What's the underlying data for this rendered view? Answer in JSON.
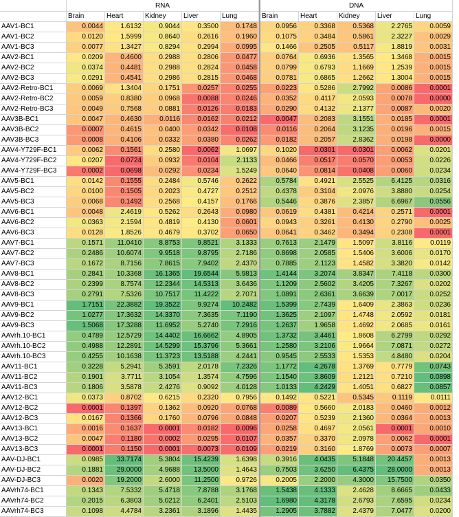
{
  "chart_data": {
    "type": "heatmap",
    "groups": [
      "RNA",
      "DNA"
    ],
    "tissues": [
      "Brain",
      "Heart",
      "Kidney",
      "Liver",
      "Lung"
    ],
    "rows": [
      {
        "label": "AAV1-BC1",
        "rna": [
          "0.0044",
          "1.6132",
          "0.9044",
          "0.3500",
          "0.1748"
        ],
        "dna": [
          "0.0956",
          "0.3368",
          "0.5368",
          "2.2765",
          "0.0059"
        ]
      },
      {
        "label": "AAV1-BC2",
        "rna": [
          "0.0120",
          "1.5999",
          "0.8640",
          "0.2616",
          "0.1960"
        ],
        "dna": [
          "0.1075",
          "0.3484",
          "0.5861",
          "2.3227",
          "0.0029"
        ]
      },
      {
        "label": "AAV1-BC3",
        "rna": [
          "0.0077",
          "1.3427",
          "0.8294",
          "0.2994",
          "0.0995"
        ],
        "dna": [
          "0.1466",
          "0.2505",
          "0.5117",
          "1.8819",
          "0.0031"
        ]
      },
      {
        "label": "AAV2-BC1",
        "rna": [
          "0.0209",
          "0.4600",
          "0.2988",
          "0.2806",
          "0.0477"
        ],
        "dna": [
          "0.0764",
          "0.6936",
          "1.3565",
          "1.3468",
          "0.0015"
        ]
      },
      {
        "label": "AAV2-BC2",
        "rna": [
          "0.0374",
          "0.4481",
          "0.2988",
          "0.2824",
          "0.0458"
        ],
        "dna": [
          "0.0799",
          "0.6793",
          "1.1669",
          "1.2539",
          "0.0015"
        ]
      },
      {
        "label": "AAV2-BC3",
        "rna": [
          "0.0291",
          "0.4541",
          "0.2986",
          "0.2815",
          "0.0468"
        ],
        "dna": [
          "0.0781",
          "0.6865",
          "1.2662",
          "1.3004",
          "0.0015"
        ]
      },
      {
        "label": "AAV2-Retro-BC1",
        "rna": [
          "0.0069",
          "1.3404",
          "0.1751",
          "0.0257",
          "0.0255"
        ],
        "dna": [
          "0.0223",
          "0.5286",
          "2.7992",
          "0.0086",
          "0.0001"
        ]
      },
      {
        "label": "AAV2-Retro-BC2",
        "rna": [
          "0.0059",
          "0.8380",
          "0.0968",
          "0.0088",
          "0.0246"
        ],
        "dna": [
          "0.0352",
          "0.4117",
          "2.0593",
          "0.0078",
          "0.0000"
        ]
      },
      {
        "label": "AAV2-Retro-BC3",
        "rna": [
          "0.0049",
          "0.7568",
          "0.0881",
          "0.0126",
          "0.0183"
        ],
        "dna": [
          "0.0290",
          "0.4132",
          "2.1377",
          "0.0087",
          "0.0020"
        ]
      },
      {
        "label": "AAV3B-BC1",
        "rna": [
          "0.0047",
          "0.4630",
          "0.0116",
          "0.0162",
          "0.0212"
        ],
        "dna": [
          "0.0047",
          "0.2083",
          "3.1551",
          "0.0185",
          "0.0001"
        ]
      },
      {
        "label": "AAV3B-BC2",
        "rna": [
          "0.0007",
          "0.4615",
          "0.0400",
          "0.0342",
          "0.0108"
        ],
        "dna": [
          "0.0116",
          "0.2064",
          "3.1235",
          "0.0196",
          "0.0015"
        ]
      },
      {
        "label": "AAV3B-BC3",
        "rna": [
          "0.0008",
          "0.4106",
          "0.0332",
          "0.0380",
          "0.0262"
        ],
        "dna": [
          "0.0182",
          "0.2057",
          "2.8362",
          "0.0198",
          "0.0000"
        ]
      },
      {
        "label": "AAV4-Y729F-BC1",
        "rna": [
          "0.0062",
          "0.1561",
          "0.2580",
          "0.0062",
          "1.0697"
        ],
        "dna": [
          "0.1020",
          "0.0301",
          "0.0301",
          "0.0062",
          "0.0201"
        ]
      },
      {
        "label": "AAV4-Y729F-BC2",
        "rna": [
          "0.0207",
          "0.0724",
          "0.0932",
          "0.0104",
          "2.1133"
        ],
        "dna": [
          "0.0466",
          "0.0517",
          "0.0570",
          "0.0053",
          "0.0226"
        ]
      },
      {
        "label": "AAV4-Y729F-BC3",
        "rna": [
          "0.0002",
          "0.0698",
          "0.0292",
          "0.0234",
          "1.5249"
        ],
        "dna": [
          "0.0640",
          "0.0814",
          "0.0408",
          "0.0060",
          "0.0234"
        ]
      },
      {
        "label": "AAV5-BC1",
        "rna": [
          "0.0142",
          "0.1555",
          "0.2484",
          "0.5746",
          "0.2622"
        ],
        "dna": [
          "0.5784",
          "0.4921",
          "2.5525",
          "6.4125",
          "0.0316"
        ]
      },
      {
        "label": "AAV5-BC2",
        "rna": [
          "0.0100",
          "0.1505",
          "0.2023",
          "0.4727",
          "0.2512"
        ],
        "dna": [
          "0.4378",
          "0.3104",
          "2.0976",
          "3.8880",
          "0.0254"
        ]
      },
      {
        "label": "AAV5-BC3",
        "rna": [
          "0.0068",
          "0.1492",
          "0.2568",
          "0.4157",
          "0.1766"
        ],
        "dna": [
          "0.5446",
          "0.3876",
          "2.3857",
          "6.6967",
          "0.0556"
        ]
      },
      {
        "label": "AAV6-BC1",
        "rna": [
          "0.0048",
          "2.4619",
          "0.5262",
          "0.2643",
          "0.0980"
        ],
        "dna": [
          "0.0619",
          "0.4381",
          "0.4214",
          "0.2571",
          "0.0001"
        ]
      },
      {
        "label": "AAV6-BC2",
        "rna": [
          "0.0363",
          "2.1594",
          "0.4819",
          "0.4130",
          "0.0601"
        ],
        "dna": [
          "0.0943",
          "0.3261",
          "0.4130",
          "0.2790",
          "0.0025"
        ]
      },
      {
        "label": "AAV6-BC3",
        "rna": [
          "0.0128",
          "1.8526",
          "0.4679",
          "0.3702",
          "0.0650"
        ],
        "dna": [
          "0.0641",
          "0.3462",
          "0.3494",
          "0.2308",
          "0.0001"
        ]
      },
      {
        "label": "AAV7-BC1",
        "rna": [
          "0.1571",
          "11.0410",
          "8.8753",
          "9.8521",
          "3.1333"
        ],
        "dna": [
          "0.7613",
          "2.1479",
          "1.5097",
          "3.8116",
          "0.0119"
        ]
      },
      {
        "label": "AAV7-BC2",
        "rna": [
          "0.2486",
          "10.6074",
          "9.9518",
          "9.8795",
          "2.7186"
        ],
        "dna": [
          "0.8698",
          "2.0585",
          "1.5406",
          "3.6006",
          "0.0170"
        ]
      },
      {
        "label": "AAV7-BC3",
        "rna": [
          "0.1672",
          "8.7156",
          "7.8615",
          "7.9402",
          "2.4370"
        ],
        "dna": [
          "0.7885",
          "2.1123",
          "1.4582",
          "3.3820",
          "0.0142"
        ]
      },
      {
        "label": "AAV8-BC1",
        "rna": [
          "0.2841",
          "10.3368",
          "16.1365",
          "19.6544",
          "5.9813"
        ],
        "dna": [
          "1.4144",
          "3.2074",
          "3.8347",
          "7.4118",
          "0.0300"
        ]
      },
      {
        "label": "AAV8-BC2",
        "rna": [
          "0.2399",
          "8.7574",
          "12.2344",
          "14.5313",
          "3.6436"
        ],
        "dna": [
          "1.1209",
          "2.5602",
          "3.4205",
          "7.3267",
          "0.0202"
        ]
      },
      {
        "label": "AAV8-BC3",
        "rna": [
          "0.2791",
          "7.5326",
          "10.7517",
          "11.4222",
          "2.7071"
        ],
        "dna": [
          "1.0891",
          "2.6361",
          "3.6639",
          "7.0017",
          "0.0252"
        ]
      },
      {
        "label": "AAV9-BC1",
        "rna": [
          "1.7151",
          "22.3882",
          "19.3522",
          "9.9274",
          "10.2482"
        ],
        "dna": [
          "1.5399",
          "2.7439",
          "1.6409",
          "2.3863",
          "0.0236"
        ]
      },
      {
        "label": "AAV9-BC2",
        "rna": [
          "1.0277",
          "17.3632",
          "14.3370",
          "7.3635",
          "7.1190"
        ],
        "dna": [
          "1.3625",
          "2.1097",
          "1.4748",
          "2.0592",
          "0.0181"
        ]
      },
      {
        "label": "AAV9-BC3",
        "rna": [
          "1.5068",
          "17.3288",
          "11.6952",
          "5.2740",
          "7.2916"
        ],
        "dna": [
          "1.2637",
          "1.9658",
          "1.4692",
          "2.0685",
          "0.0161"
        ]
      },
      {
        "label": "AAVrh.10-BC1",
        "rna": [
          "0.4789",
          "12.5729",
          "14.4402",
          "16.6662",
          "4.8905"
        ],
        "dna": [
          "1.3732",
          "3.4461",
          "1.8608",
          "6.2799",
          "0.0292"
        ]
      },
      {
        "label": "AAVrh.10-BC2",
        "rna": [
          "0.4988",
          "12.2891",
          "14.5299",
          "15.3796",
          "5.3661"
        ],
        "dna": [
          "1.2580",
          "3.2106",
          "1.9664",
          "7.0871",
          "0.0272"
        ]
      },
      {
        "label": "AAVrh.10-BC3",
        "rna": [
          "0.4255",
          "10.1638",
          "11.3723",
          "13.5188",
          "4.2441"
        ],
        "dna": [
          "0.9545",
          "2.5533",
          "1.5353",
          "4.8480",
          "0.0204"
        ]
      },
      {
        "label": "AAV11-BC1",
        "rna": [
          "0.3228",
          "5.2941",
          "5.3591",
          "2.0178",
          "7.2326"
        ],
        "dna": [
          "1.1772",
          "4.2678",
          "1.3769",
          "0.7779",
          "0.0743"
        ]
      },
      {
        "label": "AAV11-BC2",
        "rna": [
          "0.1901",
          "3.7711",
          "3.1054",
          "1.3574",
          "4.7596"
        ],
        "dna": [
          "1.1540",
          "3.8609",
          "1.2121",
          "0.7210",
          "0.0898"
        ]
      },
      {
        "label": "AAV11-BC3",
        "rna": [
          "0.1806",
          "3.5878",
          "2.4276",
          "0.9092",
          "4.0128"
        ],
        "dna": [
          "1.0133",
          "4.2429",
          "1.4051",
          "0.6827",
          "0.0857"
        ]
      },
      {
        "label": "AAV12-BC1",
        "rna": [
          "0.0373",
          "0.8702",
          "0.6215",
          "0.2320",
          "0.7956"
        ],
        "dna": [
          "0.1492",
          "0.5221",
          "0.5345",
          "0.1119",
          "0.0111"
        ]
      },
      {
        "label": "AAV12-BC2",
        "rna": [
          "0.0001",
          "0.1397",
          "0.1362",
          "0.0920",
          "0.0768"
        ],
        "dna": [
          "0.0089",
          "0.5660",
          "2.0183",
          "0.0460",
          "0.0012"
        ]
      },
      {
        "label": "AAV12-BC3",
        "rna": [
          "0.0167",
          "0.1366",
          "0.1760",
          "0.0796",
          "0.0848"
        ],
        "dna": [
          "0.0207",
          "0.5239",
          "2.1360",
          "0.0364",
          "0.0013"
        ]
      },
      {
        "label": "AAV13-BC1",
        "rna": [
          "0.0016",
          "0.1637",
          "0.0001",
          "0.0182",
          "0.0096"
        ],
        "dna": [
          "0.0258",
          "0.4697",
          "2.0561",
          "0.0001",
          "0.0010"
        ]
      },
      {
        "label": "AAV13-BC2",
        "rna": [
          "0.0047",
          "0.1180",
          "0.0002",
          "0.0295",
          "0.0107"
        ],
        "dna": [
          "0.0357",
          "0.3370",
          "2.0978",
          "0.0062",
          "0.0001"
        ]
      },
      {
        "label": "AAV13-BC3",
        "rna": [
          "0.0001",
          "0.1150",
          "0.0001",
          "0.0073",
          "0.0109"
        ],
        "dna": [
          "0.0219",
          "0.3160",
          "1.8769",
          "0.0073",
          "0.0007"
        ]
      },
      {
        "label": "AAV-DJ-BC1",
        "rna": [
          "0.0985",
          "33.7174",
          "5.3804",
          "15.4239",
          "1.6398"
        ],
        "dna": [
          "0.3916",
          "4.0435",
          "5.1848",
          "20.4457",
          "0.0013"
        ]
      },
      {
        "label": "AAV-DJ-BC2",
        "rna": [
          "0.1881",
          "29.0000",
          "4.9688",
          "13.5000",
          "1.4643"
        ],
        "dna": [
          "0.7503",
          "3.6250",
          "6.4375",
          "28.0000",
          "0.0013"
        ]
      },
      {
        "label": "AAV-DJ-BC3",
        "rna": [
          "0.0020",
          "19.2000",
          "2.6000",
          "11.2500",
          "0.9726"
        ],
        "dna": [
          "0.2005",
          "2.2000",
          "4.3000",
          "15.7500",
          "0.0350"
        ]
      },
      {
        "label": "AAVrh74-BC1",
        "rna": [
          "0.1343",
          "7.5332",
          "5.4718",
          "7.8788",
          "3.1768"
        ],
        "dna": [
          "1.5438",
          "4.1333",
          "2.4628",
          "8.6665",
          "0.0433"
        ]
      },
      {
        "label": "AAVrh74-BC2",
        "rna": [
          "0.2015",
          "6.3803",
          "5.0212",
          "6.2401",
          "2.5103"
        ],
        "dna": [
          "1.6980",
          "4.3178",
          "2.6793",
          "7.6595",
          "0.0234"
        ]
      },
      {
        "label": "AAVrh74-BC3",
        "rna": [
          "0.1098",
          "4.4784",
          "3.2361",
          "3.1896",
          "1.4435"
        ],
        "dna": [
          "1.2905",
          "3.7882",
          "2.4379",
          "7.0477",
          "0.0200"
        ]
      }
    ],
    "color_scale": {
      "low": "#f8696b",
      "mid": "#ffeb84",
      "high": "#63be7b",
      "scale": "log",
      "per_column": true
    }
  }
}
